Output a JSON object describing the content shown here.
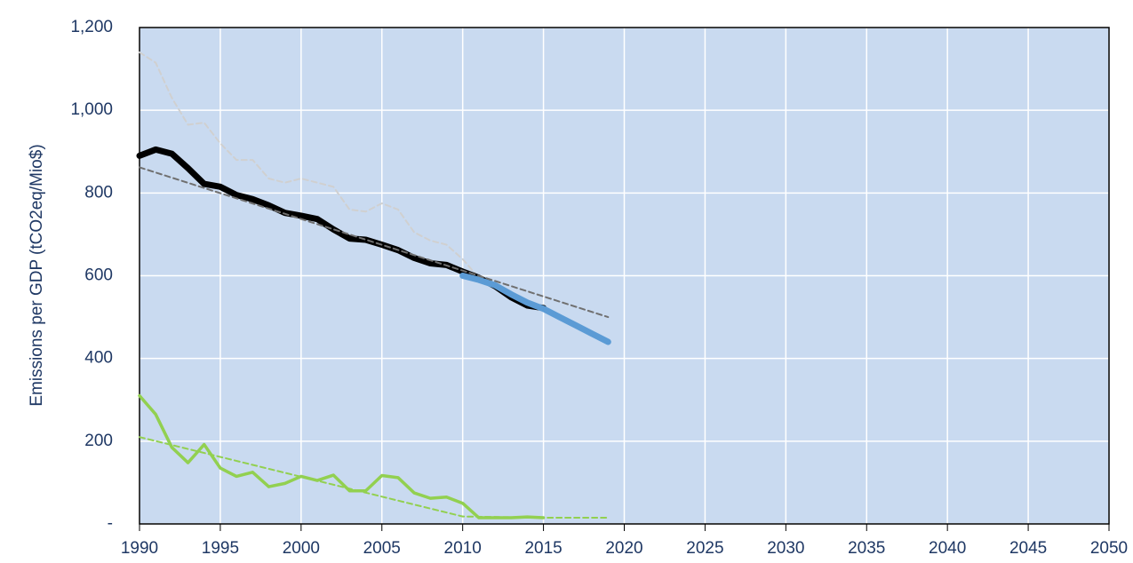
{
  "chart_data": {
    "type": "line",
    "y_label": "Emissions per GDP (tCO2eq/Mio$)",
    "xlim": [
      1990,
      2050
    ],
    "xticks": [
      1990,
      1995,
      2000,
      2005,
      2010,
      2015,
      2020,
      2025,
      2030,
      2035,
      2040,
      2045,
      2050
    ],
    "ylim": [
      0,
      1200
    ],
    "yticks": [
      {
        "value": 0,
        "label": "-"
      },
      200,
      400,
      600,
      800,
      {
        "value": 1000,
        "label": "1,000"
      },
      {
        "value": 1200,
        "label": "1,200"
      }
    ],
    "grid": true,
    "series": [
      {
        "color": "#d0d0d0",
        "style": "dashed",
        "weight": "normal",
        "x": [
          1990,
          1991,
          1992,
          1993,
          1994,
          1995,
          1996,
          1997,
          1998,
          1999,
          2000,
          2001,
          2002,
          2003,
          2004,
          2005,
          2006,
          2007,
          2008,
          2009,
          2010,
          2011
        ],
        "values": [
          1140,
          1115,
          1030,
          965,
          970,
          920,
          880,
          880,
          835,
          825,
          835,
          825,
          815,
          760,
          755,
          775,
          760,
          705,
          685,
          675,
          640,
          595
        ]
      },
      {
        "color": "#000000",
        "style": "solid",
        "weight": "thick",
        "x": [
          1990,
          1991,
          1992,
          1993,
          1994,
          1995,
          1996,
          1997,
          1998,
          1999,
          2000,
          2001,
          2002,
          2003,
          2004,
          2005,
          2006,
          2007,
          2008,
          2009,
          2010,
          2011,
          2012,
          2013,
          2014,
          2015
        ],
        "values": [
          890,
          905,
          895,
          860,
          822,
          815,
          795,
          785,
          770,
          752,
          745,
          737,
          712,
          690,
          687,
          675,
          662,
          643,
          630,
          626,
          610,
          595,
          575,
          548,
          528,
          522
        ]
      },
      {
        "color": "#5b9bd5",
        "style": "solid",
        "weight": "thick",
        "x": [
          2010,
          2011,
          2012,
          2013,
          2014,
          2015,
          2016,
          2017,
          2018,
          2019
        ],
        "values": [
          600,
          590,
          577,
          555,
          535,
          520,
          500,
          480,
          460,
          440
        ]
      },
      {
        "color": "#707070",
        "style": "dashed",
        "weight": "normal",
        "x": [
          1990,
          2019
        ],
        "values": [
          862,
          500
        ]
      },
      {
        "color": "#92d050",
        "style": "solid",
        "weight": "medium",
        "x": [
          1990,
          1991,
          1992,
          1993,
          1994,
          1995,
          1996,
          1997,
          1998,
          1999,
          2000,
          2001,
          2002,
          2003,
          2004,
          2005,
          2006,
          2007,
          2008,
          2009,
          2010,
          2011,
          2012,
          2013,
          2014,
          2015
        ],
        "values": [
          310,
          265,
          185,
          148,
          192,
          135,
          115,
          125,
          90,
          98,
          115,
          105,
          118,
          80,
          80,
          117,
          112,
          75,
          62,
          65,
          50,
          15,
          15,
          15,
          17,
          15
        ]
      },
      {
        "color": "#92d050",
        "style": "dashed",
        "weight": "normal",
        "x": [
          1990,
          2010,
          2015,
          2019
        ],
        "values": [
          210,
          18,
          15,
          15
        ]
      }
    ]
  }
}
